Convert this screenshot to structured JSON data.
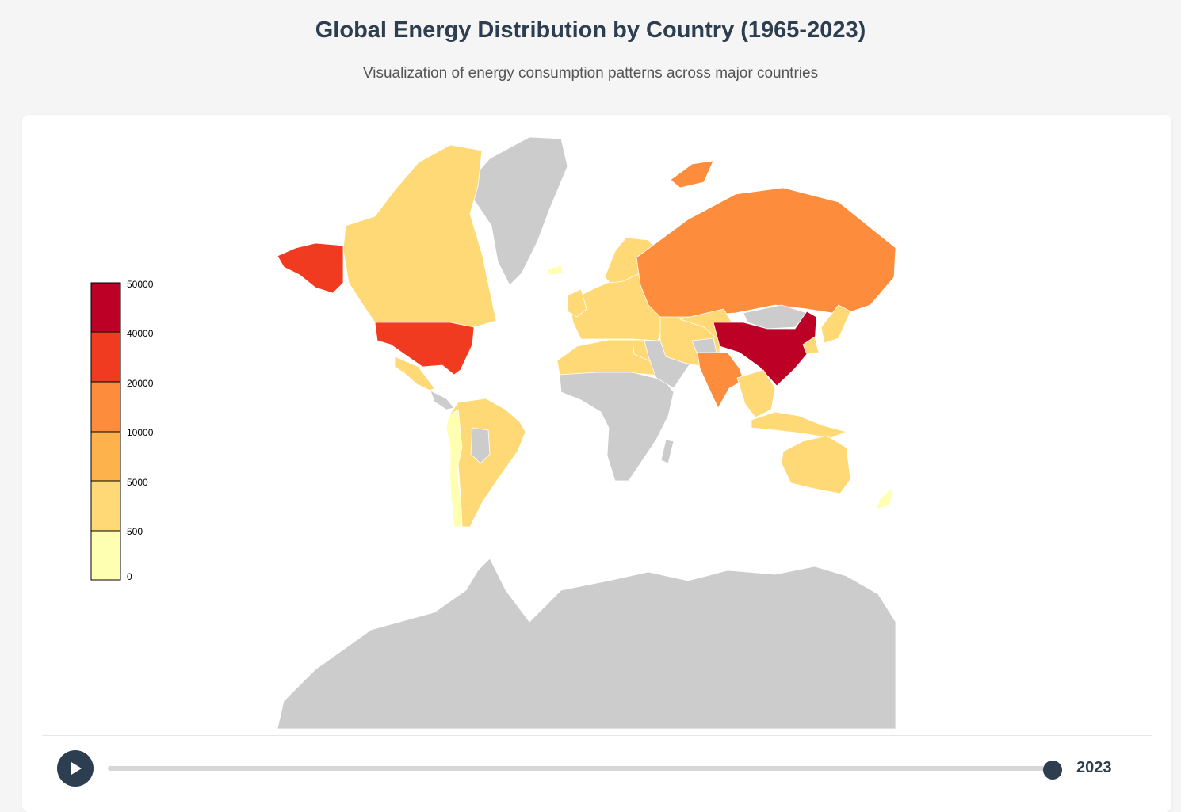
{
  "header": {
    "title": "Global Energy Distribution by Country (1965-2023)",
    "subtitle": "Visualization of energy consumption patterns across major countries"
  },
  "legend": {
    "ticks": [
      "50000",
      "40000",
      "20000",
      "10000",
      "5000",
      "500",
      "0"
    ],
    "colors": [
      "#bd0026",
      "#f03b20",
      "#fd8d3c",
      "#feb24c",
      "#fed976",
      "#ffffb2"
    ]
  },
  "colors": {
    "no_data": "#cccccc",
    "accent": "#2c3e50"
  },
  "timeline": {
    "year": "2023",
    "min_year": 1965,
    "max_year": 2023,
    "value": 2023
  }
}
